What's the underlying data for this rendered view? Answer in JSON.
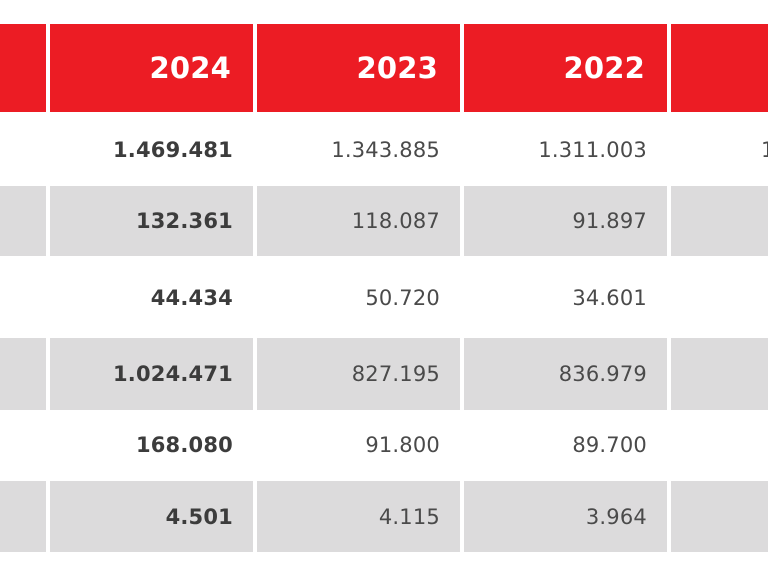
{
  "header": {
    "years": [
      "2024",
      "2023",
      "2022"
    ]
  },
  "rows": [
    {
      "v2024": "1.469.481",
      "v2023": "1.343.885",
      "v2022": "1.311.003",
      "next_partial": "1"
    },
    {
      "v2024": "132.361",
      "v2023": "118.087",
      "v2022": "91.897"
    },
    {
      "v2024": "44.434",
      "v2023": "50.720",
      "v2022": "34.601"
    },
    {
      "v2024": "1.024.471",
      "v2023": "827.195",
      "v2022": "836.979"
    },
    {
      "v2024": "168.080",
      "v2023": "91.800",
      "v2022": "89.700"
    },
    {
      "v2024": "4.501",
      "v2023": "4.115",
      "v2022": "3.964"
    }
  ],
  "colors": {
    "header_bg": "#ec1c24",
    "header_text": "#ffffff",
    "shaded_row": "#dcdbdc",
    "text": "#4a4a4a"
  }
}
